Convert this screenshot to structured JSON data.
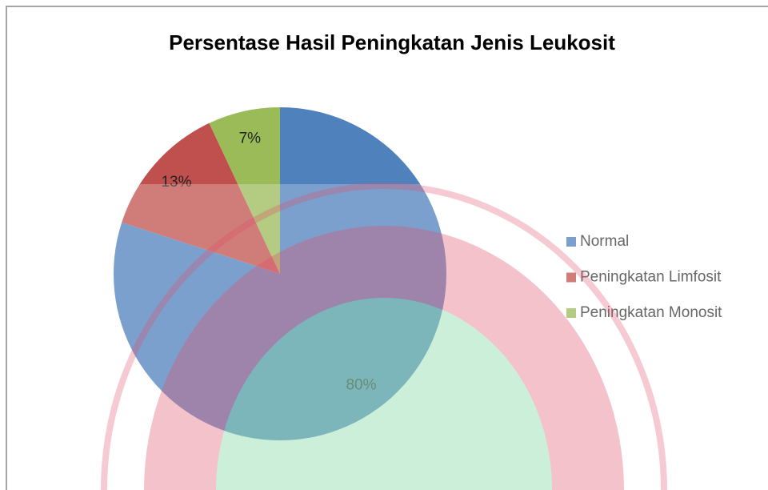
{
  "chart_data": {
    "type": "pie",
    "title": "Persentase Hasil Peningkatan Jenis Leukosit",
    "categories": [
      "Normal",
      "Peningkatan Limfosit",
      "Peningkatan Monosit"
    ],
    "values": [
      80,
      13,
      7
    ],
    "value_labels": [
      "80%",
      "13%",
      "7%"
    ],
    "colors": [
      "#4f81bd",
      "#c0504d",
      "#9bbb59"
    ],
    "legend": "right"
  }
}
